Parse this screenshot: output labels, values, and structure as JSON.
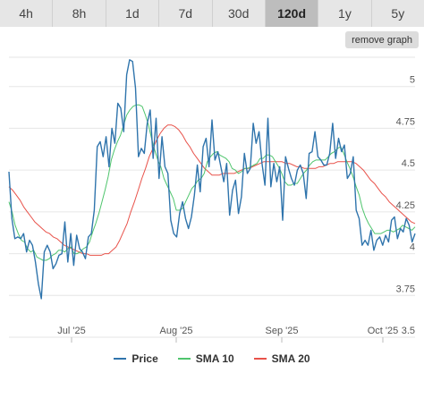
{
  "tabs": [
    {
      "label": "4h",
      "active": false
    },
    {
      "label": "8h",
      "active": false
    },
    {
      "label": "1d",
      "active": false
    },
    {
      "label": "7d",
      "active": false
    },
    {
      "label": "30d",
      "active": false
    },
    {
      "label": "120d",
      "active": true
    },
    {
      "label": "1y",
      "active": false
    },
    {
      "label": "5y",
      "active": false
    }
  ],
  "remove_graph_label": "remove graph",
  "chart_data": {
    "type": "line",
    "x_ticks": [
      "Jul '25",
      "Aug '25",
      "Sep '25",
      "Oct '25"
    ],
    "y_ticks": [
      3.5,
      3.75,
      4,
      4.25,
      4.5,
      4.75,
      5
    ],
    "ylim": [
      3.5,
      5.25
    ],
    "grid": true,
    "legend_position": "bottom-center",
    "series": [
      {
        "name": "Price",
        "color": "#2f74ac",
        "values": [
          4.49,
          4.21,
          4.09,
          4.1,
          4.09,
          4.12,
          4.01,
          4.08,
          4.05,
          3.95,
          3.82,
          3.73,
          4.01,
          4.05,
          4.01,
          3.91,
          3.94,
          3.99,
          4.0,
          4.19,
          3.95,
          4.12,
          3.93,
          4.11,
          4.03,
          4.01,
          3.97,
          4.1,
          4.12,
          4.26,
          4.64,
          4.67,
          4.58,
          4.7,
          4.52,
          4.75,
          4.66,
          4.9,
          4.87,
          4.73,
          5.07,
          5.16,
          5.15,
          4.99,
          4.58,
          4.63,
          4.6,
          4.78,
          4.86,
          4.57,
          4.81,
          4.45,
          4.7,
          4.52,
          4.48,
          4.2,
          4.12,
          4.1,
          4.24,
          4.31,
          4.21,
          4.15,
          4.22,
          4.35,
          4.53,
          4.37,
          4.64,
          4.69,
          4.52,
          4.8,
          4.56,
          4.61,
          4.52,
          4.43,
          4.54,
          4.23,
          4.38,
          4.44,
          4.24,
          4.34,
          4.6,
          4.48,
          4.51,
          4.78,
          4.66,
          4.73,
          4.54,
          4.41,
          4.81,
          4.4,
          4.54,
          4.43,
          4.52,
          4.2,
          4.58,
          4.51,
          4.45,
          4.41,
          4.5,
          4.53,
          4.48,
          4.33,
          4.6,
          4.61,
          4.73,
          4.58,
          4.56,
          4.53,
          4.53,
          4.6,
          4.78,
          4.57,
          4.69,
          4.61,
          4.65,
          4.45,
          4.48,
          4.58,
          4.26,
          4.21,
          4.05,
          4.08,
          4.05,
          4.14,
          4.02,
          4.08,
          4.1,
          4.05,
          4.11,
          4.07,
          4.2,
          4.22,
          4.09,
          4.15,
          4.13,
          4.21,
          4.17,
          4.07,
          4.12
        ]
      },
      {
        "name": "SMA 10",
        "color": "#4fc56d",
        "values": [
          4.31,
          4.25,
          4.17,
          4.12,
          4.08,
          4.07,
          4.03,
          4.01,
          4.02,
          3.98,
          3.97,
          3.96,
          3.96,
          3.97,
          3.99,
          4.0,
          4.02,
          4.02,
          4.01,
          4.03,
          4.04,
          4.0,
          4.0,
          4.01,
          4.03,
          4.04,
          4.07,
          4.13,
          4.18,
          4.24,
          4.31,
          4.38,
          4.46,
          4.56,
          4.62,
          4.67,
          4.71,
          4.77,
          4.83,
          4.86,
          4.88,
          4.89,
          4.89,
          4.88,
          4.83,
          4.77,
          4.69,
          4.62,
          4.56,
          4.52,
          4.45,
          4.41,
          4.37,
          4.33,
          4.26,
          4.26,
          4.27,
          4.31,
          4.35,
          4.39,
          4.41,
          4.44,
          4.45,
          4.48,
          4.55,
          4.58,
          4.6,
          4.61,
          4.59,
          4.58,
          4.57,
          4.55,
          4.51,
          4.5,
          4.48,
          4.49,
          4.51,
          4.51,
          4.52,
          4.53,
          4.54,
          4.57,
          4.57,
          4.59,
          4.59,
          4.58,
          4.55,
          4.52,
          4.48,
          4.43,
          4.41,
          4.41,
          4.42,
          4.42,
          4.45,
          4.48,
          4.5,
          4.53,
          4.55,
          4.56,
          4.56,
          4.56,
          4.56,
          4.58,
          4.6,
          4.61,
          4.63,
          4.64,
          4.6,
          4.55,
          4.51,
          4.46,
          4.4,
          4.35,
          4.27,
          4.22,
          4.18,
          4.15,
          4.12,
          4.12,
          4.12,
          4.13,
          4.14,
          4.14,
          4.13,
          4.14,
          4.15,
          4.17,
          4.16,
          4.15,
          4.14,
          4.16
        ]
      },
      {
        "name": "SMA 20",
        "color": "#e8524a",
        "values": [
          4.4,
          4.38,
          4.35,
          4.32,
          4.28,
          4.25,
          4.22,
          4.19,
          4.17,
          4.15,
          4.13,
          4.12,
          4.1,
          4.09,
          4.07,
          4.05,
          4.04,
          4.03,
          4.02,
          4.01,
          4.0,
          4.0,
          3.99,
          3.99,
          3.99,
          3.99,
          4.0,
          4.0,
          4.02,
          4.04,
          4.08,
          4.13,
          4.18,
          4.25,
          4.31,
          4.38,
          4.45,
          4.51,
          4.58,
          4.63,
          4.68,
          4.72,
          4.75,
          4.77,
          4.77,
          4.76,
          4.74,
          4.71,
          4.67,
          4.64,
          4.6,
          4.57,
          4.54,
          4.51,
          4.49,
          4.47,
          4.47,
          4.47,
          4.48,
          4.48,
          4.48,
          4.48,
          4.49,
          4.5,
          4.51,
          4.51,
          4.52,
          4.53,
          4.54,
          4.55,
          4.55,
          4.55,
          4.55,
          4.55,
          4.55,
          4.54,
          4.54,
          4.53,
          4.52,
          4.52,
          4.51,
          4.51,
          4.51,
          4.51,
          4.52,
          4.52,
          4.53,
          4.54,
          4.54,
          4.55,
          4.55,
          4.55,
          4.55,
          4.55,
          4.54,
          4.52,
          4.5,
          4.47,
          4.44,
          4.42,
          4.39,
          4.36,
          4.34,
          4.31,
          4.29,
          4.27,
          4.25,
          4.23,
          4.21,
          4.19,
          4.18
        ]
      }
    ]
  }
}
